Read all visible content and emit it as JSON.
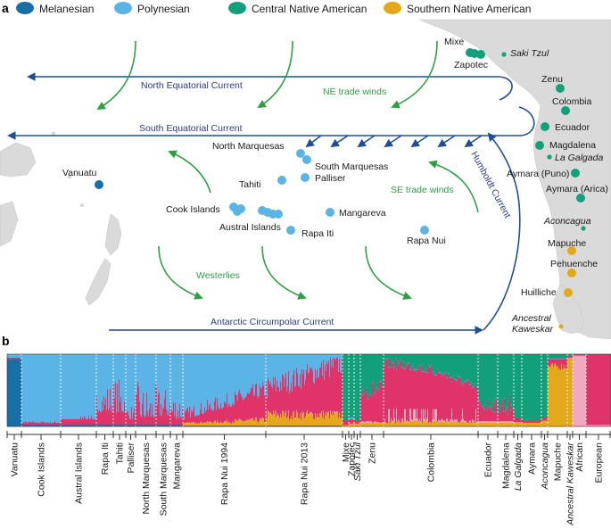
{
  "panels": {
    "a": "a",
    "b": "b"
  },
  "colors": {
    "melanesian": "#176fa6",
    "polynesian": "#5ab4e6",
    "central_native": "#12a07a",
    "southern_native": "#e3a81c",
    "african": "#f2a9c0",
    "european": "#e0336a",
    "current": "#1f4f8f",
    "wind": "#2ea043",
    "land": "#d9d9d9"
  },
  "legend": [
    {
      "key": "melanesian",
      "label": "Melanesian"
    },
    {
      "key": "polynesian",
      "label": "Polynesian"
    },
    {
      "key": "central_native",
      "label": "Central Native American"
    },
    {
      "key": "southern_native",
      "label": "Southern Native American"
    }
  ],
  "map": {
    "currents": {
      "north_equatorial": "North Equatorial Current",
      "south_equatorial": "South Equatorial Current",
      "humboldt": "Humboldt Current",
      "antarctic": "Antarctic Circumpolar Current"
    },
    "winds": {
      "ne_trade": "NE trade winds",
      "se_trade": "SE trade winds",
      "westerlies": "Westerlies"
    },
    "places": [
      {
        "name": "Vanuatu",
        "italic": false,
        "group": "melanesian"
      },
      {
        "name": "North Marquesas",
        "italic": false,
        "group": "polynesian"
      },
      {
        "name": "South Marquesas",
        "italic": false,
        "group": "polynesian"
      },
      {
        "name": "Tahiti",
        "italic": false,
        "group": "polynesian"
      },
      {
        "name": "Palliser",
        "italic": false,
        "group": "polynesian"
      },
      {
        "name": "Cook Islands",
        "italic": false,
        "group": "polynesian"
      },
      {
        "name": "Austral Islands",
        "italic": false,
        "group": "polynesian"
      },
      {
        "name": "Mangareva",
        "italic": false,
        "group": "polynesian"
      },
      {
        "name": "Rapa Iti",
        "italic": false,
        "group": "polynesian"
      },
      {
        "name": "Rapa Nui",
        "italic": false,
        "group": "polynesian"
      },
      {
        "name": "Mixe",
        "italic": false,
        "group": "central_native"
      },
      {
        "name": "Zapotec",
        "italic": false,
        "group": "central_native"
      },
      {
        "name": "Saki Tzul",
        "italic": true,
        "group": "central_native"
      },
      {
        "name": "Zenu",
        "italic": false,
        "group": "central_native"
      },
      {
        "name": "Colombia",
        "italic": false,
        "group": "central_native"
      },
      {
        "name": "Ecuador",
        "italic": false,
        "group": "central_native"
      },
      {
        "name": "Magdalena",
        "italic": false,
        "group": "central_native"
      },
      {
        "name": "La Galgada",
        "italic": true,
        "group": "central_native"
      },
      {
        "name": "Aymara (Puno)",
        "italic": false,
        "group": "central_native"
      },
      {
        "name": "Aymara (Arica)",
        "italic": false,
        "group": "central_native"
      },
      {
        "name": "Aconcagua",
        "italic": true,
        "group": "central_native"
      },
      {
        "name": "Mapuche",
        "italic": false,
        "group": "southern_native"
      },
      {
        "name": "Pehuenche",
        "italic": false,
        "group": "southern_native"
      },
      {
        "name": "Huilliche",
        "italic": false,
        "group": "southern_native"
      },
      {
        "name": "Ancestral Kaweskar",
        "italic": true,
        "group": "southern_native"
      }
    ]
  },
  "admixture": {
    "populations": [
      {
        "name": "Vanuatu",
        "italic": false
      },
      {
        "name": "Cook Islands",
        "italic": false
      },
      {
        "name": "Austral Islands",
        "italic": false
      },
      {
        "name": "Rapa Iti",
        "italic": false
      },
      {
        "name": "Tahiti",
        "italic": false
      },
      {
        "name": "Palliser",
        "italic": false
      },
      {
        "name": "North Marquesas",
        "italic": false
      },
      {
        "name": "South Marquesas",
        "italic": false
      },
      {
        "name": "Mangareva",
        "italic": false
      },
      {
        "name": "Rapa Nui 1994",
        "italic": false
      },
      {
        "name": "Rapa Nui 2013",
        "italic": false
      },
      {
        "name": "Mixe",
        "italic": false
      },
      {
        "name": "Zapotec",
        "italic": false
      },
      {
        "name": "Saki Tzul",
        "italic": true
      },
      {
        "name": "Zenu",
        "italic": false
      },
      {
        "name": "Colombia",
        "italic": false
      },
      {
        "name": "Ecuador",
        "italic": false
      },
      {
        "name": "Magdalena",
        "italic": false
      },
      {
        "name": "La Galgada",
        "italic": true
      },
      {
        "name": "Aymara",
        "italic": false
      },
      {
        "name": "Aconcagua",
        "italic": true
      },
      {
        "name": "Mapuche",
        "italic": false
      },
      {
        "name": "Ancestral Kaweskar",
        "italic": true
      },
      {
        "name": "African",
        "italic": false
      },
      {
        "name": "European",
        "italic": false
      }
    ]
  }
}
